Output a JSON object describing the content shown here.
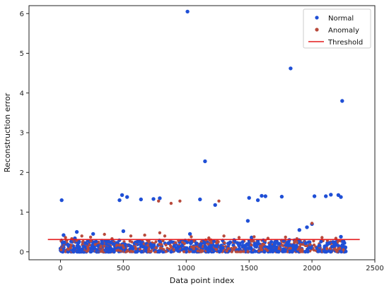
{
  "chart_data": {
    "type": "scatter",
    "xlabel": "Data point index",
    "ylabel": "Reconstruction error",
    "xlim": [
      -250,
      2500
    ],
    "ylim": [
      -0.2,
      6.2
    ],
    "xticks": [
      0,
      500,
      1000,
      1500,
      2000,
      2500
    ],
    "yticks": [
      0,
      1,
      2,
      3,
      4,
      5,
      6
    ],
    "grid": false,
    "legend_position": "top-right",
    "legend": [
      "Normal",
      "Anomaly",
      "Threshold"
    ],
    "threshold": {
      "name": "Threshold",
      "value": 0.31,
      "x_range": [
        -100,
        2380
      ],
      "color": "#e41a1c"
    },
    "series": [
      {
        "name": "Normal",
        "color": "#1f4fd6",
        "points": [
          [
            10,
            1.3
          ],
          [
            25,
            0.42
          ],
          [
            115,
            0.34
          ],
          [
            130,
            0.5
          ],
          [
            260,
            0.45
          ],
          [
            330,
            0.28
          ],
          [
            470,
            1.3
          ],
          [
            490,
            1.43
          ],
          [
            500,
            0.52
          ],
          [
            530,
            1.38
          ],
          [
            640,
            1.32
          ],
          [
            740,
            1.33
          ],
          [
            790,
            1.35
          ],
          [
            1010,
            6.05
          ],
          [
            1030,
            0.45
          ],
          [
            1110,
            1.32
          ],
          [
            1150,
            2.28
          ],
          [
            1230,
            1.18
          ],
          [
            1500,
            1.36
          ],
          [
            1490,
            0.78
          ],
          [
            1520,
            0.36
          ],
          [
            1570,
            1.3
          ],
          [
            1600,
            1.41
          ],
          [
            1630,
            1.4
          ],
          [
            1760,
            1.39
          ],
          [
            1830,
            4.62
          ],
          [
            1900,
            0.55
          ],
          [
            1960,
            0.62
          ],
          [
            2000,
            0.7
          ],
          [
            2020,
            1.4
          ],
          [
            2110,
            1.4
          ],
          [
            2150,
            1.44
          ],
          [
            2210,
            1.43
          ],
          [
            2230,
            1.38
          ],
          [
            2240,
            3.8
          ],
          [
            2230,
            0.38
          ],
          [
            2260,
            0.12
          ],
          [
            60,
            0.18
          ],
          [
            150,
            0.12
          ],
          [
            200,
            0.22
          ],
          [
            300,
            0.15
          ],
          [
            380,
            0.08
          ],
          [
            420,
            0.2
          ],
          [
            560,
            0.14
          ],
          [
            610,
            0.25
          ],
          [
            680,
            0.1
          ],
          [
            720,
            0.18
          ],
          [
            860,
            0.22
          ],
          [
            940,
            0.12
          ],
          [
            1080,
            0.2
          ],
          [
            1200,
            0.15
          ],
          [
            1290,
            0.1
          ],
          [
            1350,
            0.24
          ],
          [
            1420,
            0.16
          ],
          [
            1560,
            0.2
          ],
          [
            1680,
            0.12
          ],
          [
            1720,
            0.26
          ],
          [
            1800,
            0.18
          ],
          [
            1870,
            0.1
          ],
          [
            1950,
            0.22
          ],
          [
            2060,
            0.16
          ],
          [
            2180,
            0.2
          ]
        ]
      },
      {
        "name": "Anomaly",
        "color": "#b84a3c",
        "points": [
          [
            40,
            0.36
          ],
          [
            90,
            0.33
          ],
          [
            170,
            0.4
          ],
          [
            240,
            0.37
          ],
          [
            350,
            0.44
          ],
          [
            410,
            0.33
          ],
          [
            560,
            0.4
          ],
          [
            670,
            0.42
          ],
          [
            780,
            1.28
          ],
          [
            790,
            0.48
          ],
          [
            830,
            0.4
          ],
          [
            880,
            1.22
          ],
          [
            950,
            1.28
          ],
          [
            1040,
            0.38
          ],
          [
            1180,
            0.35
          ],
          [
            1260,
            1.28
          ],
          [
            1300,
            0.4
          ],
          [
            1420,
            0.36
          ],
          [
            1540,
            0.38
          ],
          [
            1650,
            0.34
          ],
          [
            1790,
            0.37
          ],
          [
            1880,
            0.33
          ],
          [
            2000,
            0.72
          ],
          [
            2080,
            0.36
          ],
          [
            2190,
            0.34
          ],
          [
            5,
            0.05
          ],
          [
            80,
            0.1
          ],
          [
            220,
            0.06
          ],
          [
            320,
            0.12
          ],
          [
            460,
            0.04
          ],
          [
            600,
            0.08
          ],
          [
            760,
            0.1
          ],
          [
            900,
            0.05
          ],
          [
            1060,
            0.08
          ],
          [
            1240,
            0.06
          ],
          [
            1380,
            0.1
          ],
          [
            1600,
            0.05
          ],
          [
            1740,
            0.09
          ],
          [
            1920,
            0.06
          ],
          [
            2120,
            0.08
          ],
          [
            2250,
            0.05
          ]
        ]
      }
    ]
  }
}
